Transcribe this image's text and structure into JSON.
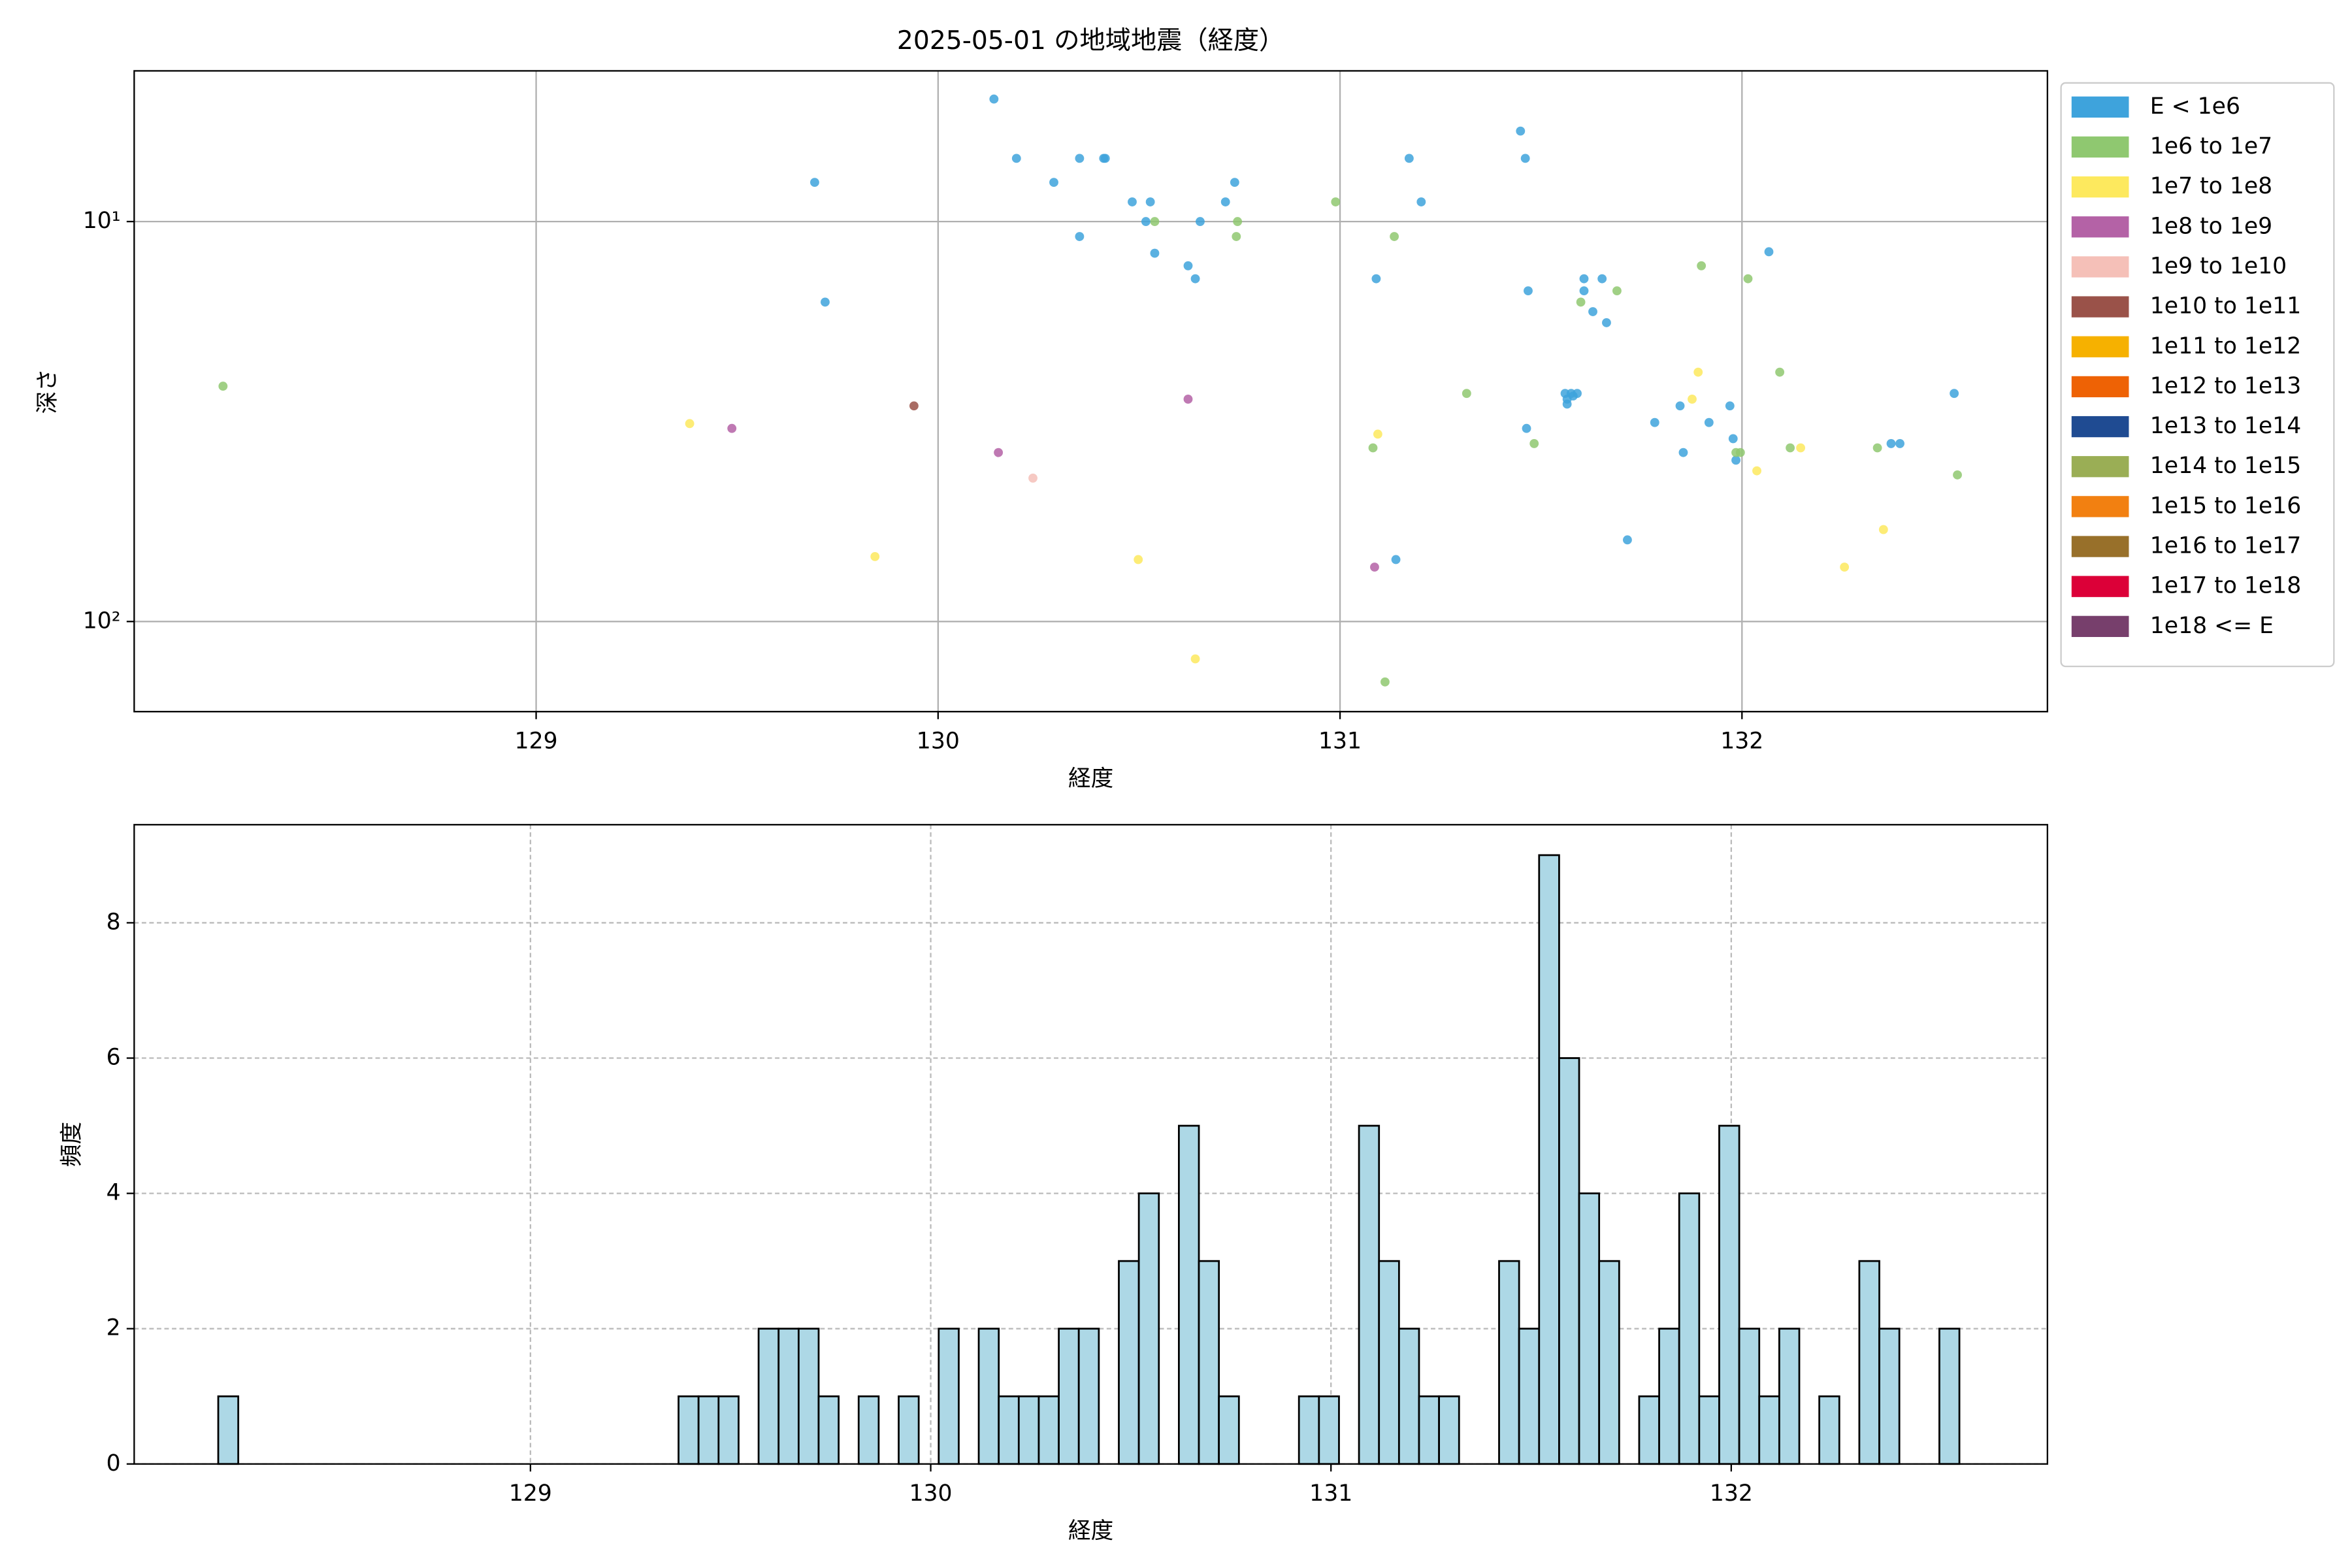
{
  "chart_data": [
    {
      "type": "scatter",
      "title": "2025-05-01 の地域地震（経度）",
      "x_label": "経度",
      "y_label": "深さ",
      "xlim": [
        128.0,
        132.76
      ],
      "xticks": [
        129,
        130,
        131,
        132
      ],
      "ylim": [
        4.2,
        168
      ],
      "log_y": true,
      "y_inverted": true,
      "yticks": [
        {
          "value": 10,
          "label": "10¹"
        },
        {
          "value": 100,
          "label": "10²"
        }
      ],
      "grid": true,
      "legend": "outside right",
      "series": [
        {
          "name": "E < 1e6",
          "color": "#3ea3dc",
          "x": [
            130.139,
            130.195,
            130.288,
            130.352,
            130.412,
            130.416,
            129.693,
            130.483,
            130.528,
            130.517,
            130.352,
            130.652,
            130.715,
            130.738,
            130.539,
            130.622,
            130.64,
            129.719,
            131.172,
            131.202,
            131.449,
            131.461,
            131.09,
            131.468,
            131.607,
            131.652,
            131.607,
            131.629,
            131.663,
            132.067,
            131.56,
            131.575,
            131.59,
            131.565,
            131.58,
            131.565,
            131.464,
            131.783,
            131.918,
            131.97,
            131.846,
            131.978,
            131.854,
            131.985,
            132.371,
            132.393,
            132.528,
            131.715,
            131.139
          ],
          "values": [
            4.94,
            6.95,
            7.98,
            6.95,
            6.95,
            6.95,
            7.98,
            8.93,
            8.93,
            10,
            10.9,
            10,
            8.93,
            7.98,
            12.0,
            12.9,
            13.9,
            15.9,
            6.95,
            8.93,
            5.94,
            6.95,
            13.9,
            14.9,
            13.9,
            13.9,
            14.9,
            16.8,
            17.9,
            11.9,
            26.9,
            26.9,
            26.9,
            27.8,
            27.3,
            28.6,
            32.9,
            31.8,
            31.8,
            28.9,
            28.9,
            34.9,
            37.8,
            39.5,
            35.9,
            35.9,
            26.9,
            62.5,
            70.0
          ]
        },
        {
          "name": "1e6 to 1e7",
          "color": "#8fc870",
          "x": [
            128.221,
            130.989,
            130.745,
            130.742,
            130.539,
            131.135,
            131.899,
            132.015,
            131.689,
            131.599,
            132.094,
            131.315,
            131.483,
            131.082,
            131.985,
            131.996,
            132.12,
            132.337,
            132.536,
            131.112
          ],
          "values": [
            25.8,
            8.93,
            10,
            10.9,
            10,
            10.9,
            12.9,
            13.9,
            14.9,
            15.9,
            23.8,
            26.9,
            35.9,
            36.8,
            37.8,
            37.8,
            36.8,
            36.8,
            43.0,
            141.6
          ]
        },
        {
          "name": "1e7 to 1e8",
          "color": "#fde95e",
          "x": [
            129.382,
            131.094,
            129.843,
            130.498,
            130.64,
            131.891,
            131.876,
            132.037,
            132.146,
            132.352,
            132.255
          ],
          "values": [
            32.0,
            34.0,
            68.8,
            70.0,
            124,
            23.8,
            27.8,
            42.0,
            36.8,
            58.9,
            73.1
          ]
        },
        {
          "name": "1e8 to 1e9",
          "color": "#b462a6",
          "x": [
            129.487,
            130.15,
            130.622,
            131.086
          ],
          "values": [
            32.9,
            37.8,
            27.8,
            73.1
          ]
        },
        {
          "name": "1e9 to 1e10",
          "color": "#f5c0b8",
          "x": [
            130.236
          ],
          "values": [
            43.8
          ]
        },
        {
          "name": "1e10 to 1e11",
          "color": "#9a5249",
          "x": [
            129.94
          ],
          "values": [
            28.9
          ]
        },
        {
          "name": "1e11 to 1e12",
          "color": "#f6b100",
          "x": [],
          "values": []
        },
        {
          "name": "1e12 to 1e13",
          "color": "#ee6205",
          "x": [],
          "values": []
        },
        {
          "name": "1e13 to 1e14",
          "color": "#1f4b92",
          "x": [],
          "values": []
        },
        {
          "name": "1e14 to 1e15",
          "color": "#9aae55",
          "x": [],
          "values": []
        },
        {
          "name": "1e15 to 1e16",
          "color": "#f28011",
          "x": [],
          "values": []
        },
        {
          "name": "1e16 to 1e17",
          "color": "#98702a",
          "x": [],
          "values": []
        },
        {
          "name": "1e17 to 1e18",
          "color": "#dc0038",
          "x": [],
          "values": []
        },
        {
          "name": "1e18 <= E",
          "color": "#773f6c",
          "x": [],
          "values": []
        }
      ]
    },
    {
      "type": "histogram",
      "x_label": "経度",
      "y_label": "頻度",
      "color": "#add8e6",
      "edgecolor": "#000000",
      "xlim": [
        128.01,
        132.79
      ],
      "xticks": [
        129,
        130,
        131,
        132
      ],
      "ylim": [
        0,
        9.45
      ],
      "yticks": [
        0,
        2,
        4,
        6,
        8
      ],
      "grid": true,
      "bins": [
        128.22,
        128.27,
        128.32,
        128.37,
        128.42,
        128.47,
        128.52,
        128.57,
        128.62,
        128.67,
        128.72,
        128.77,
        128.82,
        128.87,
        128.92,
        128.97,
        129.02,
        129.07,
        129.12,
        129.17,
        129.22,
        129.27,
        129.32,
        129.37,
        129.42,
        129.47,
        129.52,
        129.57,
        129.62,
        129.67,
        129.72,
        129.77,
        129.82,
        129.87,
        129.92,
        129.97,
        130.02,
        130.07,
        130.12,
        130.17,
        130.22,
        130.27,
        130.32,
        130.37,
        130.42,
        130.47,
        130.52,
        130.57,
        130.62,
        130.67,
        130.72,
        130.77,
        130.82,
        130.87,
        130.92,
        130.97,
        131.02,
        131.07,
        131.12,
        131.17,
        131.22,
        131.27,
        131.32,
        131.37,
        131.42,
        131.47,
        131.52,
        131.57,
        131.62,
        131.67,
        131.72,
        131.77,
        131.82,
        131.87,
        131.92,
        131.97,
        132.02,
        132.07,
        132.12,
        132.17,
        132.22,
        132.27,
        132.32,
        132.37,
        132.42,
        132.47,
        132.52,
        132.57
      ],
      "values": [
        1,
        0,
        0,
        0,
        0,
        0,
        0,
        0,
        0,
        0,
        0,
        0,
        0,
        0,
        0,
        0,
        0,
        0,
        0,
        0,
        0,
        0,
        0,
        1,
        1,
        1,
        0,
        2,
        2,
        2,
        1,
        0,
        1,
        0,
        1,
        0,
        2,
        0,
        2,
        1,
        1,
        1,
        2,
        2,
        0,
        3,
        4,
        0,
        5,
        3,
        1,
        0,
        0,
        0,
        1,
        1,
        0,
        5,
        3,
        2,
        1,
        1,
        0,
        0,
        3,
        2,
        9,
        6,
        4,
        3,
        0,
        1,
        2,
        4,
        1,
        5,
        2,
        1,
        2,
        0,
        1,
        0,
        3,
        2,
        0,
        0,
        2
      ]
    }
  ]
}
